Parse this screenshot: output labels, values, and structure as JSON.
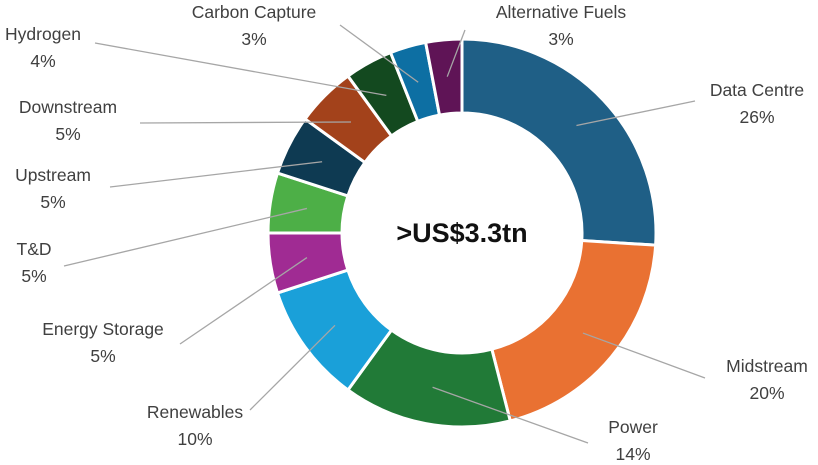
{
  "chart_data": {
    "type": "pie",
    "variant": "donut",
    "center_label": ">US$3.3tn",
    "slices": [
      {
        "name": "Data Centre",
        "value": 26,
        "value_label": "26%",
        "color": "#1f5f86"
      },
      {
        "name": "Midstream",
        "value": 20,
        "value_label": "20%",
        "color": "#e97132"
      },
      {
        "name": "Power",
        "value": 14,
        "value_label": "14%",
        "color": "#217a37"
      },
      {
        "name": "Renewables",
        "value": 10,
        "value_label": "10%",
        "color": "#1aa0d9"
      },
      {
        "name": "Energy Storage",
        "value": 5,
        "value_label": "5%",
        "color": "#a02b93"
      },
      {
        "name": "T&D",
        "value": 5,
        "value_label": "5%",
        "color": "#4daf47"
      },
      {
        "name": "Upstream",
        "value": 5,
        "value_label": "5%",
        "color": "#0e3a52"
      },
      {
        "name": "Downstream",
        "value": 5,
        "value_label": "5%",
        "color": "#a3421b"
      },
      {
        "name": "Hydrogen",
        "value": 4,
        "value_label": "4%",
        "color": "#13491f"
      },
      {
        "name": "Carbon Capture",
        "value": 3,
        "value_label": "3%",
        "color": "#0d6fa3"
      },
      {
        "name": "Alternative Fuels",
        "value": 3,
        "value_label": "3%",
        "color": "#5f1456"
      }
    ]
  }
}
